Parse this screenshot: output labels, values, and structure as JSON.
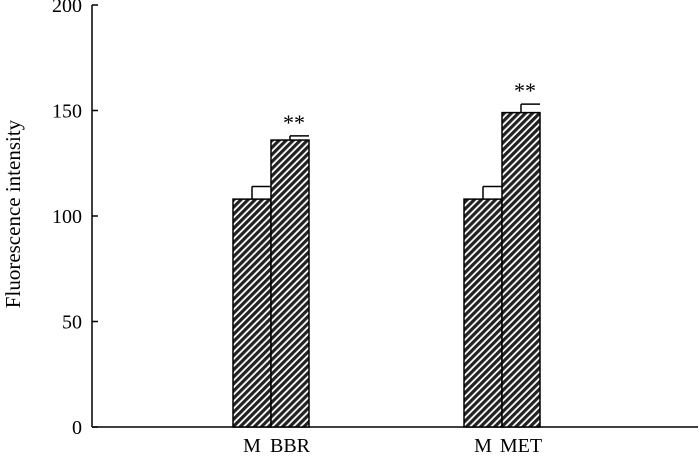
{
  "chart_data": {
    "type": "bar",
    "title": "",
    "xlabel": "",
    "ylabel": "Fluorescence intensity",
    "ylim": [
      0,
      200
    ],
    "yticks": [
      0,
      50,
      100,
      150,
      200
    ],
    "grid": false,
    "legend": "none",
    "bar_color": "#222222",
    "bar_pattern": "diagonal-hatch",
    "groups": [
      {
        "bars": [
          {
            "label": "M",
            "value": 108,
            "error": 6,
            "annotation": ""
          },
          {
            "label": "BBR",
            "value": 136,
            "error": 2,
            "annotation": "**"
          }
        ]
      },
      {
        "bars": [
          {
            "label": "M",
            "value": 108,
            "error": 6,
            "annotation": ""
          },
          {
            "label": "MET",
            "value": 149,
            "error": 4,
            "annotation": "**"
          }
        ]
      }
    ]
  }
}
